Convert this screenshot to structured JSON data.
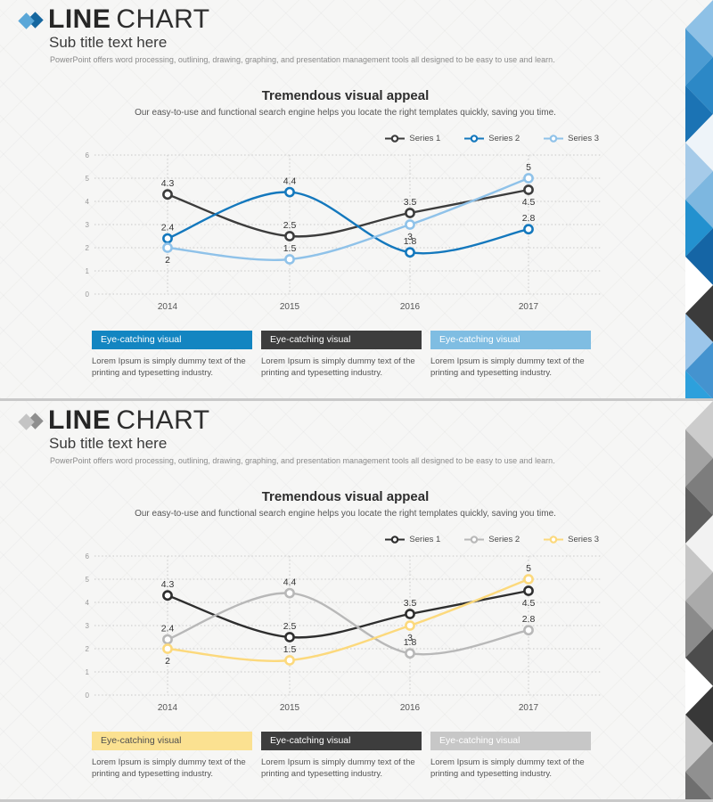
{
  "page": {
    "divider_color": "#c9c9c9",
    "slide_background": "#f6f6f5"
  },
  "slides": [
    {
      "theme": "blue",
      "icon": {
        "front": "#5aa7d8",
        "back": "#16679f"
      },
      "header": {
        "title_bold": "LINE",
        "title_light": "CHART",
        "subtitle": "Sub title text here",
        "description": "PowerPoint offers word processing, outlining, drawing, graphing, and presentation management tools all designed to be easy to use and learn."
      },
      "cards": [
        {
          "title": "Eye-catching visual",
          "body": "Lorem Ipsum is simply dummy text of the printing and typesetting industry.",
          "bg": "#1385c1",
          "fg": "#ffffff"
        },
        {
          "title": "Eye-catching visual",
          "body": "Lorem Ipsum is simply dummy text of the printing and typesetting industry.",
          "bg": "#3d3d3d",
          "fg": "#ffffff"
        },
        {
          "title": "Eye-catching visual",
          "body": "Lorem Ipsum is simply dummy text of the printing and typesetting industry.",
          "bg": "#7fbde2",
          "fg": "#ffffff"
        }
      ],
      "strip_colors": [
        "#8ec1e6",
        "#4c9cd3",
        "#2c88c6",
        "#1b73b4",
        "#eef4f9",
        "#a6cbe9",
        "#7db7e0",
        "#2391cf",
        "#1565a5",
        "#ffffff",
        "#3b3b3b",
        "#9cc6ea",
        "#4493cf",
        "#2da0dc"
      ]
    },
    {
      "theme": "gray-yellow",
      "icon": {
        "front": "#c4c4c4",
        "back": "#8e8e8e"
      },
      "header": {
        "title_bold": "LINE",
        "title_light": "CHART",
        "subtitle": "Sub title text here",
        "description": "PowerPoint offers word processing, outlining, drawing, graphing, and presentation management tools all designed to be easy to use and learn."
      },
      "cards": [
        {
          "title": "Eye-catching visual",
          "body": "Lorem Ipsum is simply dummy text of the printing and typesetting industry.",
          "bg": "#fbe191",
          "fg": "#4f4f4f"
        },
        {
          "title": "Eye-catching visual",
          "body": "Lorem Ipsum is simply dummy text of the printing and typesetting industry.",
          "bg": "#3d3d3d",
          "fg": "#ffffff"
        },
        {
          "title": "Eye-catching visual",
          "body": "Lorem Ipsum is simply dummy text of the printing and typesetting industry.",
          "bg": "#c7c7c7",
          "fg": "#ffffff"
        }
      ],
      "strip_colors": [
        "#cccccc",
        "#a3a3a3",
        "#7d7d7d",
        "#5f5f5f",
        "#f2f2f2",
        "#c6c6c6",
        "#aaaaaa",
        "#8b8b8b",
        "#4c4c4c",
        "#ffffff",
        "#383838",
        "#c9c9c9",
        "#909090",
        "#6f6f6f"
      ]
    }
  ],
  "chart_data": [
    {
      "type": "line",
      "title": "Tremendous visual appeal",
      "subtitle": "Our easy-to-use and functional search engine helps you locate the right templates quickly, saving you time.",
      "x": [
        "2014",
        "2015",
        "2016",
        "2017"
      ],
      "ylim": [
        0,
        6
      ],
      "yticks": [
        0,
        1,
        2,
        3,
        4,
        5,
        6
      ],
      "grid": "dotted horizontal and vertical",
      "legend_position": "top-right",
      "series": [
        {
          "name": "Series 1",
          "values": [
            4.3,
            2.5,
            3.5,
            4.5
          ],
          "color": "#3c3c3c",
          "label_side": [
            "above",
            "above",
            "above",
            "below"
          ]
        },
        {
          "name": "Series 2",
          "values": [
            2.4,
            4.4,
            1.8,
            2.8
          ],
          "color": "#1478bd",
          "label_side": [
            "above",
            "above",
            "above",
            "above"
          ]
        },
        {
          "name": "Series 3",
          "values": [
            2,
            1.5,
            3,
            5
          ],
          "color": "#8fc2e9",
          "label_side": [
            "below",
            "above",
            "below",
            "above"
          ]
        }
      ]
    },
    {
      "type": "line",
      "title": "Tremendous visual appeal",
      "subtitle": "Our easy-to-use and functional search engine helps you locate the right templates quickly, saving you time.",
      "x": [
        "2014",
        "2015",
        "2016",
        "2017"
      ],
      "ylim": [
        0,
        6
      ],
      "yticks": [
        0,
        1,
        2,
        3,
        4,
        5,
        6
      ],
      "grid": "dotted horizontal and vertical",
      "legend_position": "top-right",
      "series": [
        {
          "name": "Series 1",
          "values": [
            4.3,
            2.5,
            3.5,
            4.5
          ],
          "color": "#2e2e2e",
          "label_side": [
            "above",
            "above",
            "above",
            "below"
          ]
        },
        {
          "name": "Series 2",
          "values": [
            2.4,
            4.4,
            1.8,
            2.8
          ],
          "color": "#b8b8b8",
          "label_side": [
            "above",
            "above",
            "above",
            "above"
          ]
        },
        {
          "name": "Series 3",
          "values": [
            2,
            1.5,
            3,
            5
          ],
          "color": "#fcd97c",
          "label_side": [
            "below",
            "above",
            "below",
            "above"
          ]
        }
      ]
    }
  ]
}
